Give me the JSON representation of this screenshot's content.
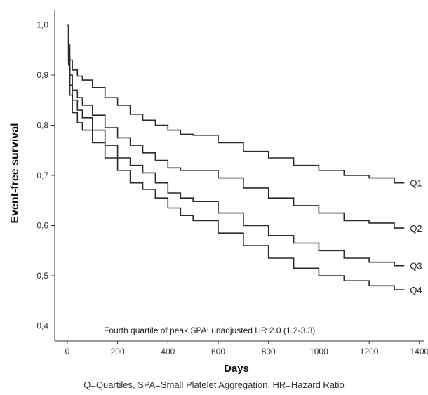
{
  "chart_data": {
    "type": "line",
    "subtype": "kaplan-meier step",
    "xlabel": "Days",
    "ylabel": "Event-free survival",
    "xlim": [
      -50,
      1420
    ],
    "ylim": [
      0.37,
      1.03
    ],
    "x_ticks": [
      0,
      200,
      400,
      600,
      800,
      1000,
      1200,
      1400
    ],
    "y_ticks": [
      0.4,
      0.5,
      0.6,
      0.7,
      0.8,
      0.9,
      1.0
    ],
    "y_tick_labels": [
      "0,4",
      "0,5",
      "0,6",
      "0,7",
      "0,8",
      "0,9",
      "1,0"
    ],
    "grid": false,
    "line_color": "#2a2a2a",
    "series": [
      {
        "name": "Q1",
        "x": [
          0,
          5,
          10,
          20,
          40,
          60,
          100,
          150,
          200,
          250,
          300,
          350,
          400,
          450,
          500,
          600,
          700,
          800,
          900,
          1000,
          1100,
          1200,
          1300,
          1340
        ],
        "y": [
          1.0,
          0.96,
          0.93,
          0.91,
          0.898,
          0.89,
          0.875,
          0.855,
          0.84,
          0.822,
          0.81,
          0.8,
          0.79,
          0.782,
          0.78,
          0.765,
          0.748,
          0.735,
          0.72,
          0.71,
          0.7,
          0.695,
          0.685,
          0.685
        ]
      },
      {
        "name": "Q2",
        "x": [
          0,
          5,
          10,
          20,
          40,
          60,
          100,
          150,
          200,
          250,
          300,
          350,
          400,
          450,
          500,
          600,
          700,
          800,
          900,
          1000,
          1100,
          1200,
          1300,
          1340
        ],
        "y": [
          1.0,
          0.94,
          0.9,
          0.87,
          0.855,
          0.84,
          0.82,
          0.795,
          0.775,
          0.76,
          0.745,
          0.73,
          0.715,
          0.71,
          0.71,
          0.695,
          0.675,
          0.655,
          0.64,
          0.625,
          0.61,
          0.605,
          0.595,
          0.595
        ]
      },
      {
        "name": "Q3",
        "x": [
          0,
          5,
          10,
          20,
          40,
          60,
          100,
          150,
          200,
          250,
          300,
          350,
          400,
          450,
          500,
          600,
          700,
          800,
          900,
          1000,
          1100,
          1200,
          1300,
          1340
        ],
        "y": [
          1.0,
          0.93,
          0.88,
          0.85,
          0.83,
          0.815,
          0.79,
          0.76,
          0.735,
          0.72,
          0.705,
          0.685,
          0.665,
          0.655,
          0.648,
          0.625,
          0.6,
          0.58,
          0.565,
          0.55,
          0.535,
          0.527,
          0.52,
          0.52
        ]
      },
      {
        "name": "Q4",
        "x": [
          0,
          5,
          10,
          20,
          40,
          60,
          100,
          150,
          200,
          250,
          300,
          350,
          400,
          450,
          500,
          600,
          700,
          800,
          900,
          1000,
          1100,
          1200,
          1300,
          1340
        ],
        "y": [
          1.0,
          0.92,
          0.86,
          0.825,
          0.805,
          0.79,
          0.765,
          0.735,
          0.71,
          0.685,
          0.672,
          0.655,
          0.635,
          0.62,
          0.61,
          0.585,
          0.56,
          0.535,
          0.515,
          0.5,
          0.49,
          0.48,
          0.472,
          0.472
        ]
      }
    ],
    "annotation": "Fourth quartile of peak SPA: unadjusted HR 2.0 (1.2-3.3)"
  },
  "footnote": "Q=Quartiles, SPA=Small Platelet Aggregation, HR=Hazard Ratio"
}
